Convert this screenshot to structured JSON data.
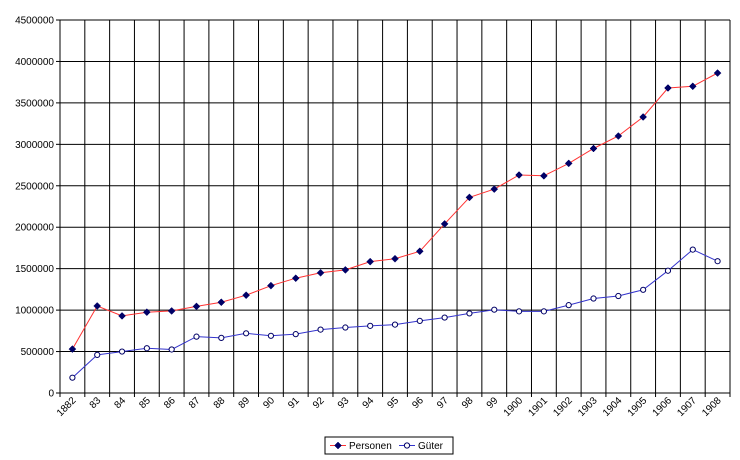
{
  "chart_data": {
    "type": "line",
    "title": "",
    "xlabel": "",
    "ylabel": "",
    "ylim": [
      0,
      4500000
    ],
    "yticks": [
      "0",
      "500000",
      "1000000",
      "1500000",
      "2000000",
      "2500000",
      "3000000",
      "3500000",
      "4000000",
      "4500000"
    ],
    "categories": [
      "1882",
      "83",
      "84",
      "85",
      "86",
      "87",
      "88",
      "89",
      "90",
      "91",
      "92",
      "93",
      "94",
      "95",
      "96",
      "97",
      "98",
      "99",
      "1900",
      "1901",
      "1902",
      "1903",
      "1904",
      "1905",
      "1906",
      "1907",
      "1908"
    ],
    "grid": true,
    "legend": "bottom-center",
    "series": [
      {
        "name": "Personen",
        "marker": "filled-diamond",
        "line_color": "#ff3333",
        "marker_color": "#000066",
        "values": [
          530000,
          1050000,
          930000,
          975000,
          990000,
          1045000,
          1095000,
          1180000,
          1295000,
          1385000,
          1450000,
          1485000,
          1585000,
          1620000,
          1710000,
          2040000,
          2360000,
          2460000,
          2630000,
          2620000,
          2770000,
          2950000,
          3100000,
          3330000,
          3680000,
          3700000,
          3860000
        ]
      },
      {
        "name": "Güter",
        "marker": "open-circle",
        "line_color": "#3333cc",
        "marker_color": "#000066",
        "values": [
          185000,
          460000,
          500000,
          540000,
          525000,
          680000,
          665000,
          720000,
          690000,
          710000,
          765000,
          790000,
          810000,
          825000,
          870000,
          910000,
          960000,
          1005000,
          985000,
          985000,
          1060000,
          1140000,
          1170000,
          1245000,
          1475000,
          1730000,
          1590000
        ]
      }
    ]
  }
}
